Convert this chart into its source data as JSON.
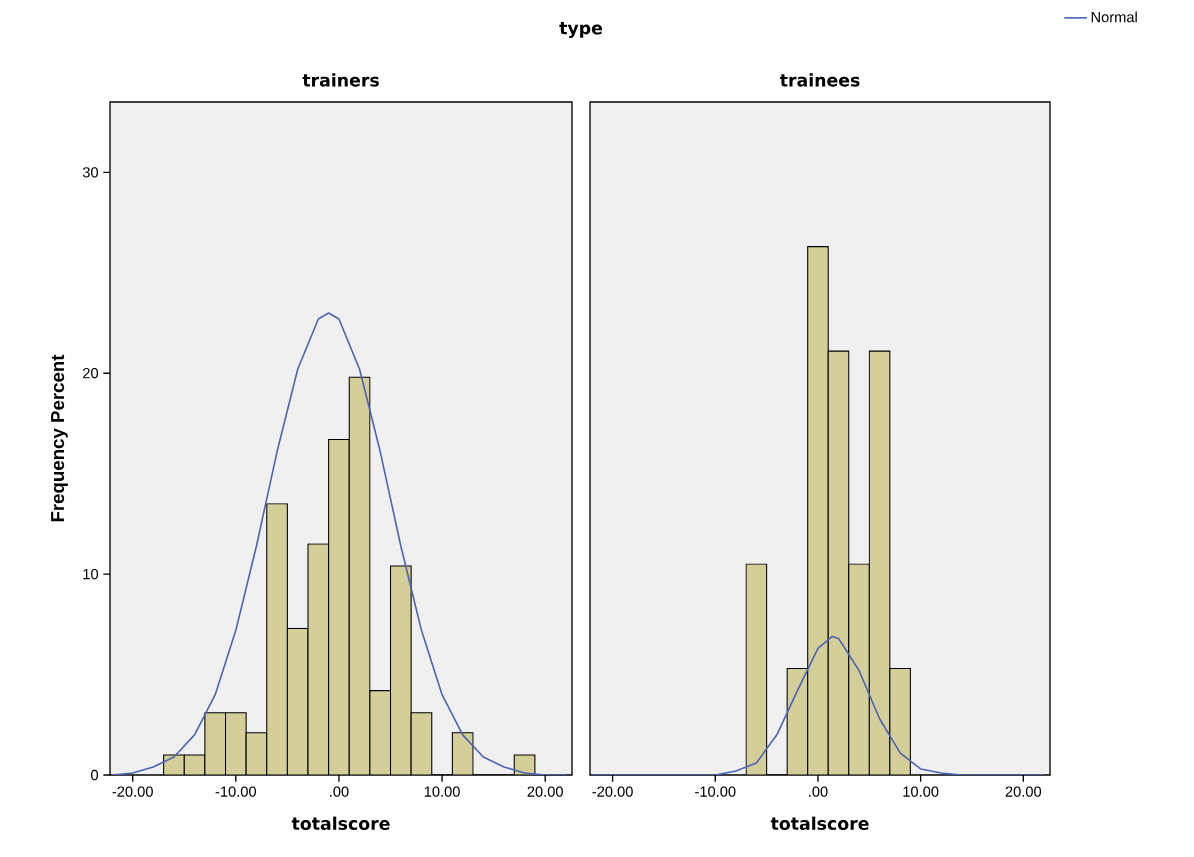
{
  "chart_data": [
    {
      "type": "histogram",
      "title": "trainers",
      "xlabel": "totalscore",
      "ylabel": "Frequency Percent",
      "annotations": [
        "type"
      ],
      "bins": [
        -17,
        -15,
        -13,
        -11,
        -9,
        -7,
        -5,
        -3,
        -1,
        1,
        3,
        5,
        7,
        9,
        11,
        13,
        15,
        17,
        19
      ],
      "values": [
        1.0,
        1.0,
        3.1,
        3.1,
        2.1,
        13.5,
        7.3,
        11.5,
        16.7,
        19.8,
        4.2,
        10.4,
        3.1,
        0,
        2.1,
        0,
        0,
        1.0
      ],
      "color": "#d4ce98",
      "series": [
        {
          "type": "line",
          "color": "#4b64b8",
          "x": [
            -22,
            -20,
            -18,
            -16,
            -14,
            -12,
            -10,
            -8,
            -6,
            -4,
            -2,
            -1,
            0,
            2,
            4,
            6,
            8,
            10,
            12,
            14,
            16,
            18,
            20,
            22
          ],
          "values": [
            0.0,
            0.1,
            0.4,
            0.9,
            2.0,
            4.0,
            7.2,
            11.4,
            16.1,
            20.2,
            22.7,
            23.0,
            22.7,
            20.2,
            16.1,
            11.4,
            7.2,
            4.0,
            2.0,
            0.9,
            0.4,
            0.1,
            0.0,
            0.0
          ]
        }
      ],
      "xlim": [
        -22.2,
        22.6
      ],
      "ylim": [
        0,
        33.5
      ],
      "xticks": [
        {
          "value": -20,
          "label": "-20.00"
        },
        {
          "value": -10,
          "label": "-10.00"
        },
        {
          "value": 0,
          "label": ".00"
        },
        {
          "value": 10,
          "label": "10.00"
        },
        {
          "value": 20,
          "label": "20.00"
        }
      ],
      "yticks": [
        0,
        10,
        20,
        30
      ]
    },
    {
      "type": "histogram",
      "title": "trainees",
      "xlabel": "totalscore",
      "bins": [
        -7,
        -5,
        -3,
        -1,
        1,
        3,
        5,
        7,
        9
      ],
      "values": [
        10.5,
        0,
        5.3,
        26.3,
        21.1,
        10.5,
        21.1,
        5.3
      ],
      "color": "#d4ce98",
      "series": [
        {
          "type": "line",
          "name": "Normal",
          "color": "#4b64b8",
          "x": [
            -22,
            -20,
            -18,
            -16,
            -14,
            -12,
            -10,
            -8,
            -6,
            -4,
            -2,
            0,
            1.4,
            2,
            4,
            6,
            8,
            10,
            12,
            14,
            16,
            18,
            20,
            22
          ],
          "values": [
            0.0,
            0.0,
            0.0,
            0.0,
            0.0,
            0.0,
            0.0,
            0.2,
            0.6,
            2.0,
            4.2,
            6.3,
            6.9,
            6.8,
            5.2,
            2.8,
            1.1,
            0.3,
            0.1,
            0.0,
            0.0,
            0.0,
            0.0,
            0.0
          ]
        }
      ],
      "legend": "top right",
      "xlim": [
        -22.2,
        22.6
      ],
      "ylim": [
        0,
        33.5
      ],
      "xticks": [
        {
          "value": -20,
          "label": "-20.00"
        },
        {
          "value": -10,
          "label": "-10.00"
        },
        {
          "value": 0,
          "label": ".00"
        },
        {
          "value": 10,
          "label": "10.00"
        },
        {
          "value": 20,
          "label": "20.00"
        }
      ],
      "tick_labels": "x"
    }
  ]
}
